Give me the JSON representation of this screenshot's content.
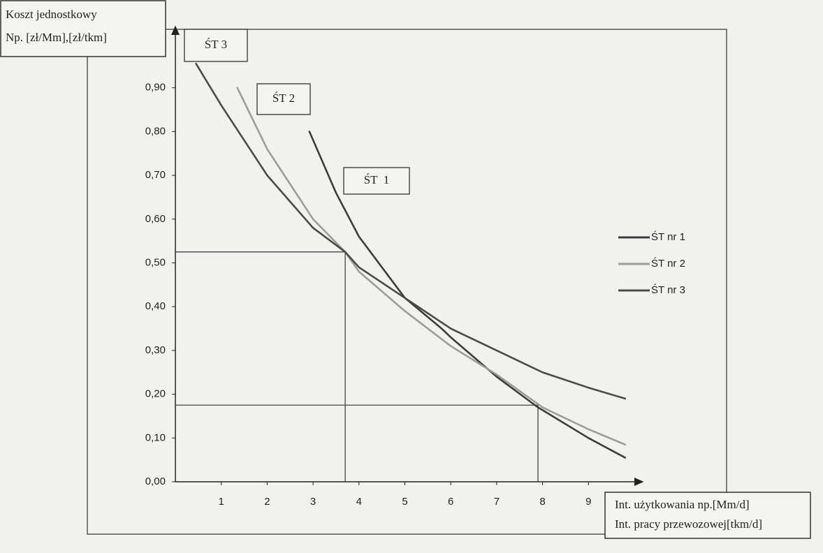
{
  "chart_data": {
    "type": "line",
    "y_label": [
      "Koszt jednostkowy",
      "Np. [zł/Mm],[zł/tkm]"
    ],
    "x_label": [
      "Int. użytkowania np.[Mm/d]",
      "Int. pracy przewozowej[tkm/d]"
    ],
    "annotations": [
      "ŚT 3",
      "ŚT 2",
      "ŚT  1"
    ],
    "series": [
      {
        "name": "ŚT nr 1",
        "color": "#3c3c3c",
        "x": [
          2.92,
          3.5,
          4,
          5,
          5.8,
          6,
          7,
          7.9,
          9,
          9.8
        ],
        "values": [
          0.8,
          0.66,
          0.56,
          0.42,
          0.35,
          0.33,
          0.24,
          0.17,
          0.1,
          0.055
        ]
      },
      {
        "name": "ŚT nr 2",
        "color": "#9c9c9c",
        "x": [
          1.35,
          2,
          3,
          3.7,
          4,
          5,
          6,
          7,
          8,
          9,
          9.8
        ],
        "values": [
          0.9,
          0.76,
          0.6,
          0.525,
          0.48,
          0.39,
          0.31,
          0.245,
          0.17,
          0.12,
          0.085
        ]
      },
      {
        "name": "ŚT nr 3",
        "color": "#4a4a4a",
        "x": [
          0.45,
          1,
          2,
          3,
          3.7,
          4,
          5,
          6,
          7,
          8,
          9,
          9.8
        ],
        "values": [
          0.955,
          0.86,
          0.7,
          0.58,
          0.525,
          0.49,
          0.42,
          0.35,
          0.3,
          0.25,
          0.215,
          0.19
        ]
      }
    ],
    "guides": [
      {
        "x": 3.7,
        "y": 0.525
      },
      {
        "x": 7.9,
        "y": 0.175
      }
    ],
    "xlim": [
      0,
      10
    ],
    "ylim": [
      0,
      1
    ],
    "xticks": [
      1,
      2,
      3,
      4,
      5,
      6,
      7,
      8,
      9
    ],
    "yticks": [
      {
        "value": 0,
        "label": "0,00"
      },
      {
        "value": 0.1,
        "label": "0,10"
      },
      {
        "value": 0.2,
        "label": "0,20"
      },
      {
        "value": 0.3,
        "label": "0,30"
      },
      {
        "value": 0.4,
        "label": "0,40"
      },
      {
        "value": 0.5,
        "label": "0,50"
      },
      {
        "value": 0.6,
        "label": "0,60"
      },
      {
        "value": 0.7,
        "label": "0,70"
      },
      {
        "value": 0.8,
        "label": "0,80"
      },
      {
        "value": 0.9,
        "label": "0,90"
      }
    ],
    "legend": "right"
  }
}
